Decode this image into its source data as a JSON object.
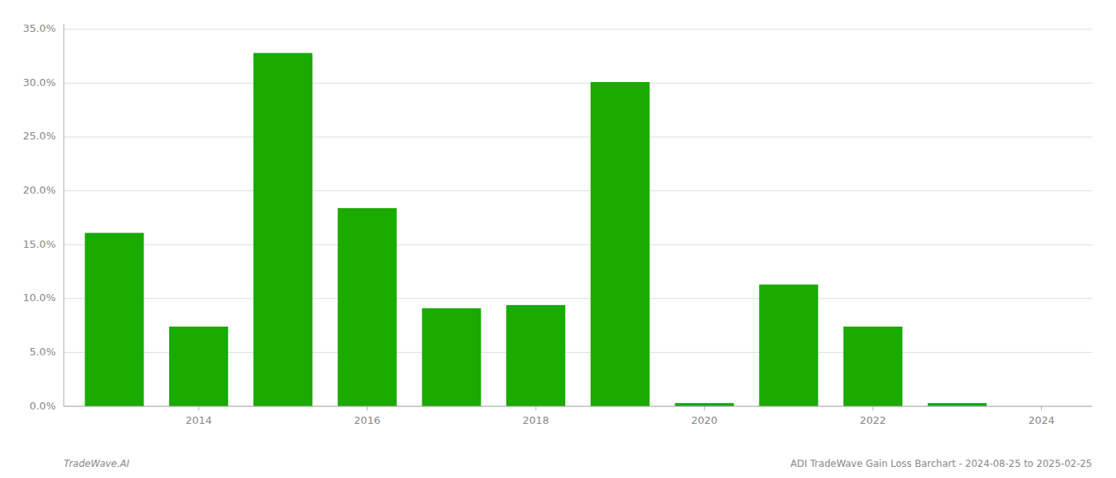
{
  "chart_data": {
    "type": "bar",
    "x": [
      2013,
      2014,
      2015,
      2016,
      2017,
      2018,
      2019,
      2020,
      2021,
      2022,
      2023
    ],
    "values": [
      0.161,
      0.074,
      0.328,
      0.184,
      0.091,
      0.094,
      0.301,
      0.003,
      0.113,
      0.074,
      0.003
    ],
    "color": "#1aaa00",
    "xlim": [
      2012.4,
      2024.6
    ],
    "xticks": [
      2014,
      2016,
      2018,
      2020,
      2022,
      2024
    ],
    "ylim": [
      0,
      0.355
    ],
    "yticks": [
      {
        "value": 0.0,
        "label": "0.0%"
      },
      {
        "value": 0.05,
        "label": "5.0%"
      },
      {
        "value": 0.1,
        "label": "10.0%"
      },
      {
        "value": 0.15,
        "label": "15.0%"
      },
      {
        "value": 0.2,
        "label": "20.0%"
      },
      {
        "value": 0.25,
        "label": "25.0%"
      },
      {
        "value": 0.3,
        "label": "30.0%"
      },
      {
        "value": 0.35,
        "label": "35.0%"
      }
    ],
    "grid": true,
    "annotations": [
      "TradeWave.AI",
      "ADI TradeWave Gain Loss Barchart - 2024-08-25 to 2025-02-25"
    ]
  }
}
